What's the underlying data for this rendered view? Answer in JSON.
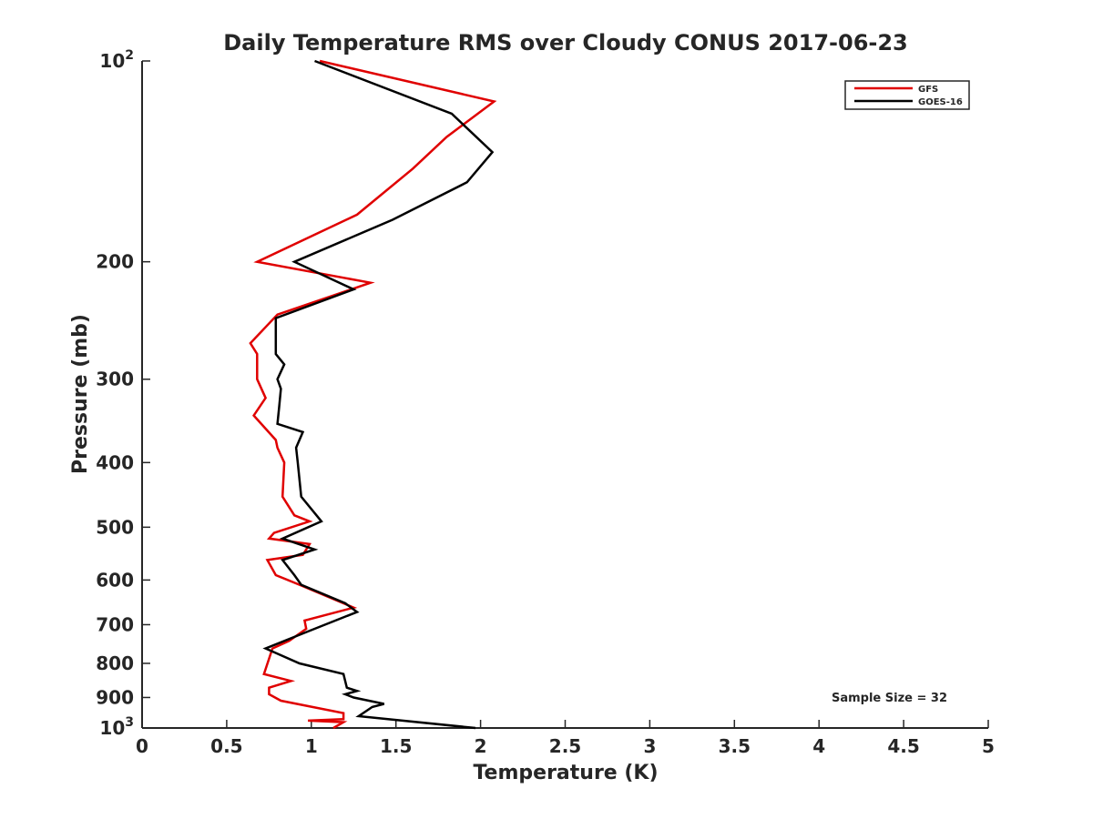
{
  "chart_data": {
    "type": "line",
    "title": "Daily Temperature RMS over Cloudy CONUS 2017-06-23",
    "xlabel": "Temperature (K)",
    "ylabel": "Pressure (mb)",
    "xlim": [
      0,
      5
    ],
    "ylim": [
      100,
      1000
    ],
    "y_scale": "log",
    "y_reversed": true,
    "x_ticks": [
      0,
      0.5,
      1,
      1.5,
      2,
      2.5,
      3,
      3.5,
      4,
      4.5,
      5
    ],
    "x_tick_labels": [
      "0",
      "0.5",
      "1",
      "1.5",
      "2",
      "2.5",
      "3",
      "3.5",
      "4",
      "4.5",
      "5"
    ],
    "y_ticks": [
      {
        "value": 100,
        "base": "10",
        "exp": "2"
      },
      {
        "value": 200,
        "label": "200"
      },
      {
        "value": 300,
        "label": "300"
      },
      {
        "value": 400,
        "label": "400"
      },
      {
        "value": 500,
        "label": "500"
      },
      {
        "value": 600,
        "label": "600"
      },
      {
        "value": 700,
        "label": "700"
      },
      {
        "value": 800,
        "label": "800"
      },
      {
        "value": 900,
        "label": "900"
      },
      {
        "value": 1000,
        "base": "10",
        "exp": "3"
      }
    ],
    "grid": false,
    "legend_position": "top-right",
    "annotation": "Sample Size = 32",
    "series": [
      {
        "name": "GFS",
        "color": "#e00000",
        "points": [
          [
            1.05,
            100
          ],
          [
            2.08,
            115
          ],
          [
            1.8,
            130
          ],
          [
            1.6,
            145
          ],
          [
            1.27,
            170
          ],
          [
            0.68,
            200
          ],
          [
            1.35,
            215
          ],
          [
            0.8,
            240
          ],
          [
            0.64,
            265
          ],
          [
            0.68,
            275
          ],
          [
            0.68,
            300
          ],
          [
            0.73,
            320
          ],
          [
            0.66,
            340
          ],
          [
            0.79,
            370
          ],
          [
            0.8,
            380
          ],
          [
            0.84,
            400
          ],
          [
            0.83,
            450
          ],
          [
            0.9,
            480
          ],
          [
            0.99,
            490
          ],
          [
            0.78,
            510
          ],
          [
            0.75,
            520
          ],
          [
            0.99,
            530
          ],
          [
            0.95,
            550
          ],
          [
            0.74,
            560
          ],
          [
            0.79,
            590
          ],
          [
            0.93,
            610
          ],
          [
            1.25,
            660
          ],
          [
            0.96,
            690
          ],
          [
            0.97,
            710
          ],
          [
            0.87,
            740
          ],
          [
            0.77,
            760
          ],
          [
            0.72,
            830
          ],
          [
            0.88,
            850
          ],
          [
            0.75,
            870
          ],
          [
            0.75,
            890
          ],
          [
            0.82,
            910
          ],
          [
            1.19,
            950
          ],
          [
            1.19,
            970
          ],
          [
            0.98,
            975
          ],
          [
            1.19,
            980
          ],
          [
            1.13,
            1000
          ]
        ]
      },
      {
        "name": "GOES-16",
        "color": "#000000",
        "points": [
          [
            1.02,
            100
          ],
          [
            1.83,
            120
          ],
          [
            2.07,
            137
          ],
          [
            1.92,
            152
          ],
          [
            1.48,
            173
          ],
          [
            0.9,
            200
          ],
          [
            1.25,
            220
          ],
          [
            0.79,
            243
          ],
          [
            0.79,
            275
          ],
          [
            0.84,
            285
          ],
          [
            0.8,
            300
          ],
          [
            0.82,
            310
          ],
          [
            0.81,
            330
          ],
          [
            0.8,
            350
          ],
          [
            0.95,
            360
          ],
          [
            0.91,
            380
          ],
          [
            0.92,
            400
          ],
          [
            0.94,
            450
          ],
          [
            1.06,
            490
          ],
          [
            0.83,
            520
          ],
          [
            1.02,
            540
          ],
          [
            0.83,
            560
          ],
          [
            0.9,
            590
          ],
          [
            0.94,
            610
          ],
          [
            1.2,
            650
          ],
          [
            1.27,
            670
          ],
          [
            1.08,
            700
          ],
          [
            0.96,
            720
          ],
          [
            0.73,
            760
          ],
          [
            0.93,
            800
          ],
          [
            1.19,
            830
          ],
          [
            1.21,
            870
          ],
          [
            1.27,
            880
          ],
          [
            1.2,
            890
          ],
          [
            1.25,
            900
          ],
          [
            1.43,
            920
          ],
          [
            1.36,
            930
          ],
          [
            1.28,
            960
          ],
          [
            1.97,
            1000
          ]
        ]
      }
    ]
  }
}
